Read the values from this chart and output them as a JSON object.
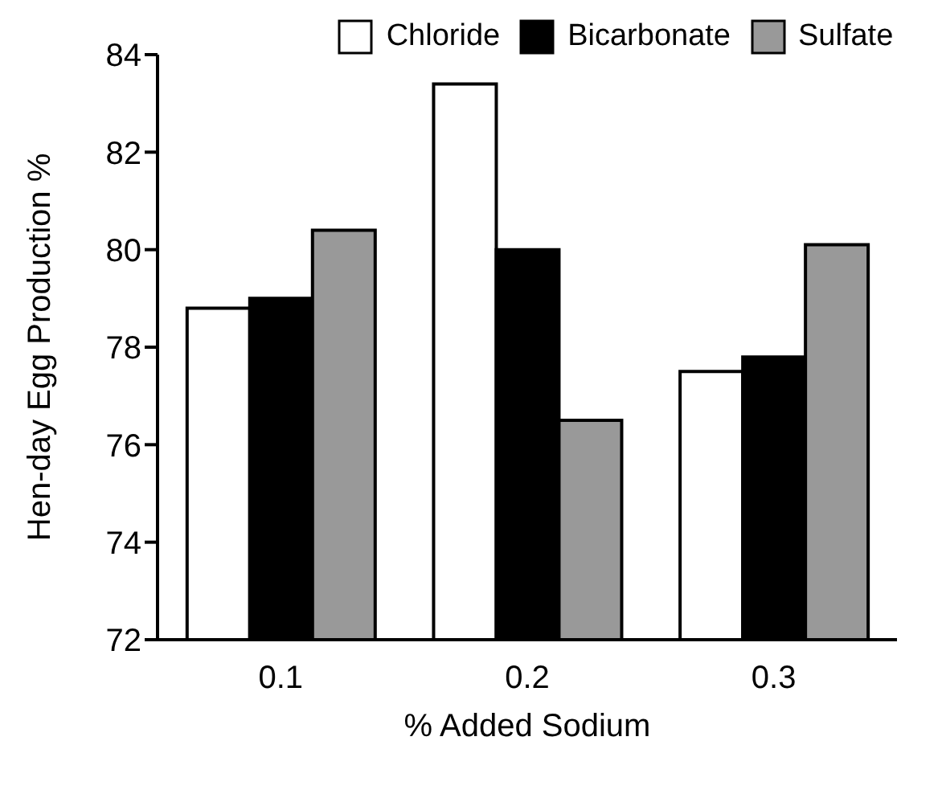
{
  "chart_data": {
    "type": "bar",
    "xlabel": "% Added Sodium",
    "ylabel": "Hen-day Egg Production %",
    "categories": [
      "0.1",
      "0.2",
      "0.3"
    ],
    "series": [
      {
        "name": "Chloride",
        "color": "#ffffff",
        "values": [
          78.8,
          83.4,
          77.5
        ]
      },
      {
        "name": "Bicarbonate",
        "color": "#000000",
        "values": [
          79.0,
          80.0,
          77.8
        ]
      },
      {
        "name": "Sulfate",
        "color": "#999999",
        "values": [
          80.4,
          76.5,
          80.1
        ]
      }
    ],
    "ylim": [
      72,
      84
    ],
    "yticks": [
      72,
      74,
      76,
      78,
      80,
      82,
      84
    ],
    "grid": false,
    "legend": "top"
  }
}
